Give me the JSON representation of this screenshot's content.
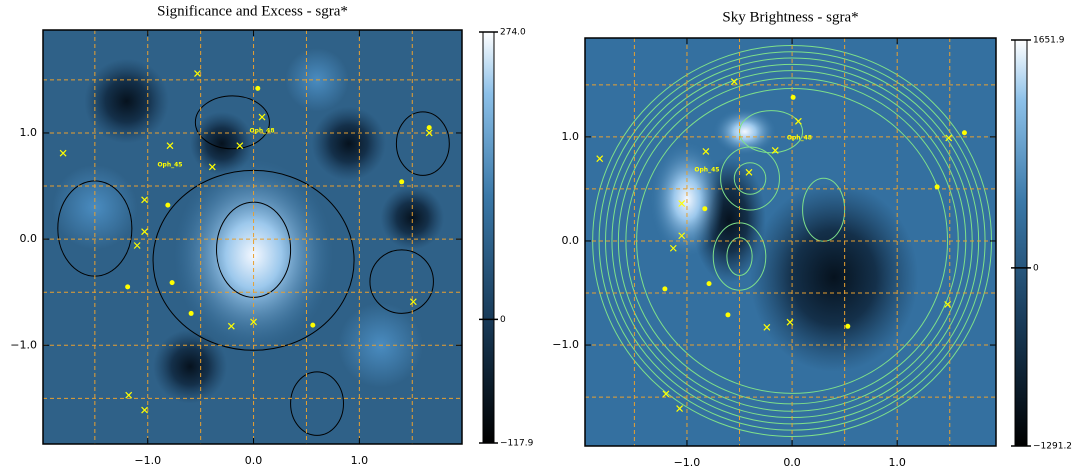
{
  "chart_data": [
    {
      "type": "heatmap",
      "title": "Significance and Excess - sgra*",
      "xlim": [
        -1.99,
        1.97
      ],
      "ylim": [
        -1.93,
        1.97
      ],
      "xticks": [
        {
          "value": -1,
          "label": "−1.0"
        },
        {
          "value": 0,
          "label": "0.0"
        },
        {
          "value": 1,
          "label": "1.0"
        }
      ],
      "yticks": [
        {
          "value": -1,
          "label": "−1.0"
        },
        {
          "value": 0,
          "label": "0.0"
        },
        {
          "value": 1,
          "label": "1.0"
        }
      ],
      "grid_x": [
        -1.5,
        -1,
        -0.5,
        0,
        0.5,
        1,
        1.5
      ],
      "grid_y": [
        -1.5,
        -1,
        -0.5,
        0,
        0.5,
        1,
        1.5
      ],
      "grid_color": "#e8a030",
      "colorbar": {
        "lim": [
          -117.9,
          274.0
        ],
        "ticks": [
          {
            "value": 274.0,
            "label": "274.0"
          },
          0,
          {
            "value": -117.9,
            "label": "−117.9"
          }
        ]
      },
      "color": "#ffff00",
      "crosses": {
        "x": [
          0.08,
          -0.79,
          -0.39,
          -1.03,
          -1.8,
          1.66,
          1.51,
          0.0,
          -0.21,
          -1.18,
          -1.03,
          -0.53,
          -0.13,
          -1.03,
          -1.1
        ],
        "y": [
          1.15,
          0.88,
          0.68,
          0.37,
          0.81,
          1.0,
          -0.59,
          -0.78,
          -0.82,
          -1.47,
          -1.61,
          1.56,
          0.88,
          0.07,
          -0.06
        ]
      },
      "dots": {
        "x": [
          0.04,
          1.66,
          1.4,
          -0.81,
          -1.19,
          -0.77,
          0.56,
          -0.59
        ],
        "y": [
          1.42,
          1.05,
          0.54,
          0.32,
          -0.45,
          -0.41,
          -0.81,
          -0.7
        ]
      },
      "annotations": [
        {
          "text": "Oph_48",
          "x": 0.08,
          "y": 1.02
        },
        {
          "text": "Oph_45",
          "x": -0.79,
          "y": 0.7
        }
      ]
    },
    {
      "type": "heatmap",
      "title": "Sky Brightness - sgra*",
      "xlim": [
        -1.97,
        1.94
      ],
      "ylim": [
        -1.97,
        1.95
      ],
      "xticks": [
        {
          "value": -1,
          "label": "−1.0"
        },
        {
          "value": 0,
          "label": "0.0"
        },
        {
          "value": 1,
          "label": "1.0"
        }
      ],
      "yticks": [
        {
          "value": -1,
          "label": "−1.0"
        },
        {
          "value": 0,
          "label": "0.0"
        },
        {
          "value": 1,
          "label": "1.0"
        }
      ],
      "grid_x": [
        -1.5,
        -1,
        -0.5,
        0,
        0.5,
        1,
        1.5
      ],
      "grid_y": [
        -1.5,
        -1,
        -0.5,
        0,
        0.5,
        1,
        1.5
      ],
      "grid_color": "#e8a030",
      "colorbar": {
        "lim": [
          -1291.2,
          1651.9
        ],
        "ticks": [
          {
            "value": 1651.9,
            "label": "1651.9"
          },
          0,
          {
            "value": -1291.2,
            "label": "−1291.2"
          }
        ]
      },
      "color": "#ffff00",
      "crosses": {
        "x": [
          0.06,
          -0.82,
          -0.41,
          -1.05,
          -1.83,
          1.49,
          1.48,
          -0.02,
          -0.24,
          -1.2,
          -1.07,
          -0.55,
          -0.16,
          -1.05,
          -1.13
        ],
        "y": [
          1.15,
          0.86,
          0.66,
          0.36,
          0.79,
          0.99,
          -0.61,
          -0.78,
          -0.83,
          -1.47,
          -1.61,
          1.53,
          0.87,
          0.05,
          -0.07
        ]
      },
      "dots": {
        "x": [
          0.01,
          1.64,
          1.38,
          -0.83,
          -1.21,
          -0.79,
          0.53,
          -0.61
        ],
        "y": [
          1.38,
          1.04,
          0.52,
          0.31,
          -0.46,
          -0.41,
          -0.82,
          -0.71
        ]
      },
      "annotations": [
        {
          "text": "Oph_48",
          "x": 0.07,
          "y": 0.99
        },
        {
          "text": "Oph_45",
          "x": -0.81,
          "y": 0.68
        }
      ]
    }
  ]
}
